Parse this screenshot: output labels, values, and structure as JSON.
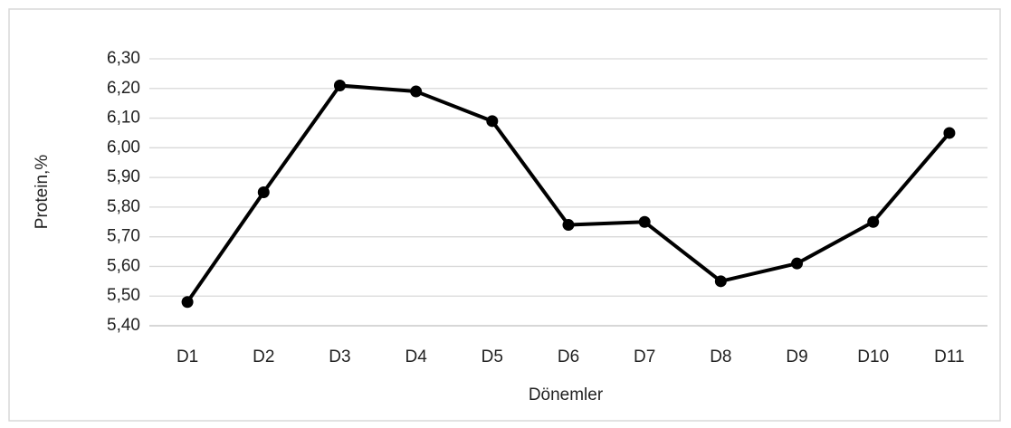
{
  "chart_data": {
    "type": "line",
    "x_label": "Dönemler",
    "y_label": "Protein,%",
    "categories": [
      "D1",
      "D2",
      "D3",
      "D4",
      "D5",
      "D6",
      "D7",
      "D8",
      "D9",
      "D10",
      "D11"
    ],
    "series": [
      {
        "color": "#000000",
        "values": [
          5.48,
          5.85,
          6.21,
          6.19,
          6.09,
          5.74,
          5.75,
          5.55,
          5.61,
          5.75,
          6.05
        ]
      }
    ],
    "ylim": [
      5.4,
      6.3
    ],
    "yticks": [
      {
        "value": 5.4,
        "label": "5,40"
      },
      {
        "value": 5.5,
        "label": "5,50"
      },
      {
        "value": 5.6,
        "label": "5,60"
      },
      {
        "value": 5.7,
        "label": "5,70"
      },
      {
        "value": 5.8,
        "label": "5,80"
      },
      {
        "value": 5.9,
        "label": "5,90"
      },
      {
        "value": 6.0,
        "label": "6,00"
      },
      {
        "value": 6.1,
        "label": "6,10"
      },
      {
        "value": 6.2,
        "label": "6,20"
      },
      {
        "value": 6.3,
        "label": "6,30"
      }
    ],
    "grid": true
  }
}
